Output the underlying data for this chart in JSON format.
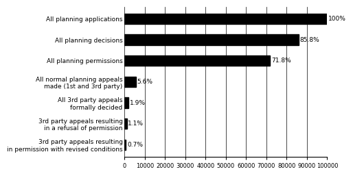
{
  "categories": [
    "3rd party appeals resulting\nin permission with revised conditions",
    "3rd party appeals resulting\nin a refusal of permission",
    "All 3rd party appeals\nformally decided",
    "All normal planning appeals\nmade (1st and 3rd party)",
    "All planning permissions",
    "All planning decisions",
    "All planning applications"
  ],
  "values": [
    700,
    1100,
    1900,
    5600,
    71800,
    85800,
    100000
  ],
  "percentages": [
    "0.7%",
    "1.1%",
    "1.9%",
    "5.6%",
    "71.8%",
    "85.8%",
    "100%"
  ],
  "bar_color": "#000000",
  "xlim": [
    0,
    100000
  ],
  "xticks": [
    0,
    10000,
    20000,
    30000,
    40000,
    50000,
    60000,
    70000,
    80000,
    90000,
    100000
  ],
  "xtick_labels": [
    "0",
    "10000",
    "20000",
    "30000",
    "40000",
    "50000",
    "60000",
    "70000",
    "80000",
    "90000",
    "100000"
  ],
  "bar_height": 0.5,
  "background_color": "#ffffff",
  "label_fontsize": 6.5,
  "pct_fontsize": 6.5,
  "tick_fontsize": 6.0
}
